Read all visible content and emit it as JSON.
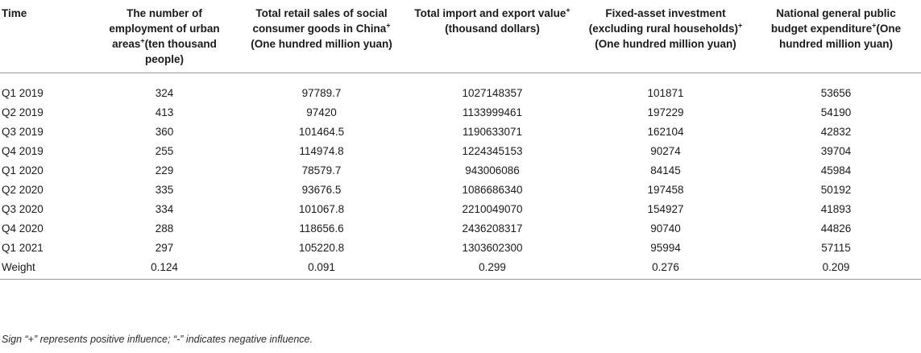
{
  "table": {
    "headers": [
      {
        "text": "Time",
        "sup": ""
      },
      {
        "text": "The number of employment of urban areas",
        "sup": "+",
        "tail": "(ten thousand people)"
      },
      {
        "text": "Total retail sales of social consumer goods in China",
        "sup": "+",
        "tail": "(One hundred million yuan)"
      },
      {
        "text": "Total import and export value",
        "sup": "+",
        "tail": "(thousand dollars)"
      },
      {
        "text": "Fixed-asset investment (excluding rural households)",
        "sup": "+",
        "tail": "(One hundred million yuan)"
      },
      {
        "text": "National general public budget expenditure",
        "sup": "+",
        "tail": "(One hundred million yuan)"
      }
    ],
    "rows": [
      [
        "Q1 2019",
        "324",
        "97789.7",
        "1027148357",
        "101871",
        "53656"
      ],
      [
        "Q2 2019",
        "413",
        "97420",
        "1133999461",
        "197229",
        "54190"
      ],
      [
        "Q3 2019",
        "360",
        "101464.5",
        "1190633071",
        "162104",
        "42832"
      ],
      [
        "Q4 2019",
        "255",
        "114974.8",
        "1224345153",
        "90274",
        "39704"
      ],
      [
        "Q1 2020",
        "229",
        "78579.7",
        "943006086",
        "84145",
        "45984"
      ],
      [
        "Q2 2020",
        "335",
        "93676.5",
        "1086686340",
        "197458",
        "50192"
      ],
      [
        "Q3 2020",
        "334",
        "101067.8",
        "2210049070",
        "154927",
        "41893"
      ],
      [
        "Q4 2020",
        "288",
        "118656.6",
        "2436208317",
        "90740",
        "44826"
      ],
      [
        "Q1 2021",
        "297",
        "105220.8",
        "1303602300",
        "95994",
        "57115"
      ],
      [
        "Weight",
        "0.124",
        "0.091",
        "0.299",
        "0.276",
        "0.209"
      ]
    ]
  },
  "footnote": "Sign “+” represents positive influence; “-” indicates negative influence."
}
